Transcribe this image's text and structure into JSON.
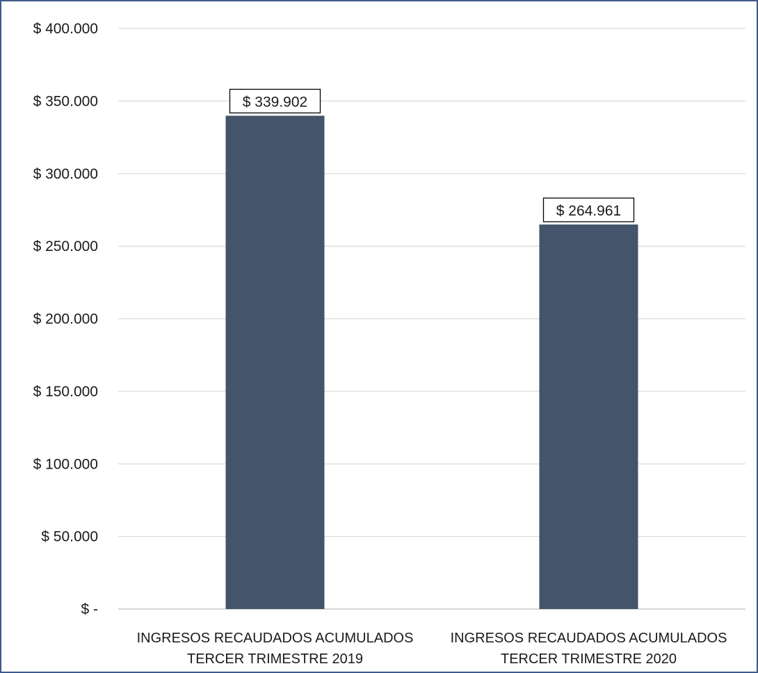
{
  "chart_data": {
    "type": "bar",
    "categories": [
      [
        "INGRESOS RECAUDADOS ACUMULADOS",
        "TERCER TRIMESTRE 2019"
      ],
      [
        "INGRESOS RECAUDADOS ACUMULADOS",
        "TERCER TRIMESTRE 2020"
      ]
    ],
    "values": [
      339902,
      264961
    ],
    "data_labels": [
      "$ 339.902",
      "$ 264.961"
    ],
    "y_ticks": [
      0,
      50000,
      100000,
      150000,
      200000,
      250000,
      300000,
      350000,
      400000
    ],
    "y_tick_labels": [
      "$ -",
      "$ 50.000",
      "$ 100.000",
      "$ 150.000",
      "$ 200.000",
      "$ 250.000",
      "$ 300.000",
      "$ 350.000",
      "$ 400.000"
    ],
    "ylim": [
      0,
      400000
    ],
    "grid": true,
    "legend": "none",
    "title": "",
    "xlabel": "",
    "ylabel": "",
    "colors": {
      "bar": "#44546a",
      "grid": "#d9d9d9",
      "border": "#3d5a8a"
    }
  }
}
